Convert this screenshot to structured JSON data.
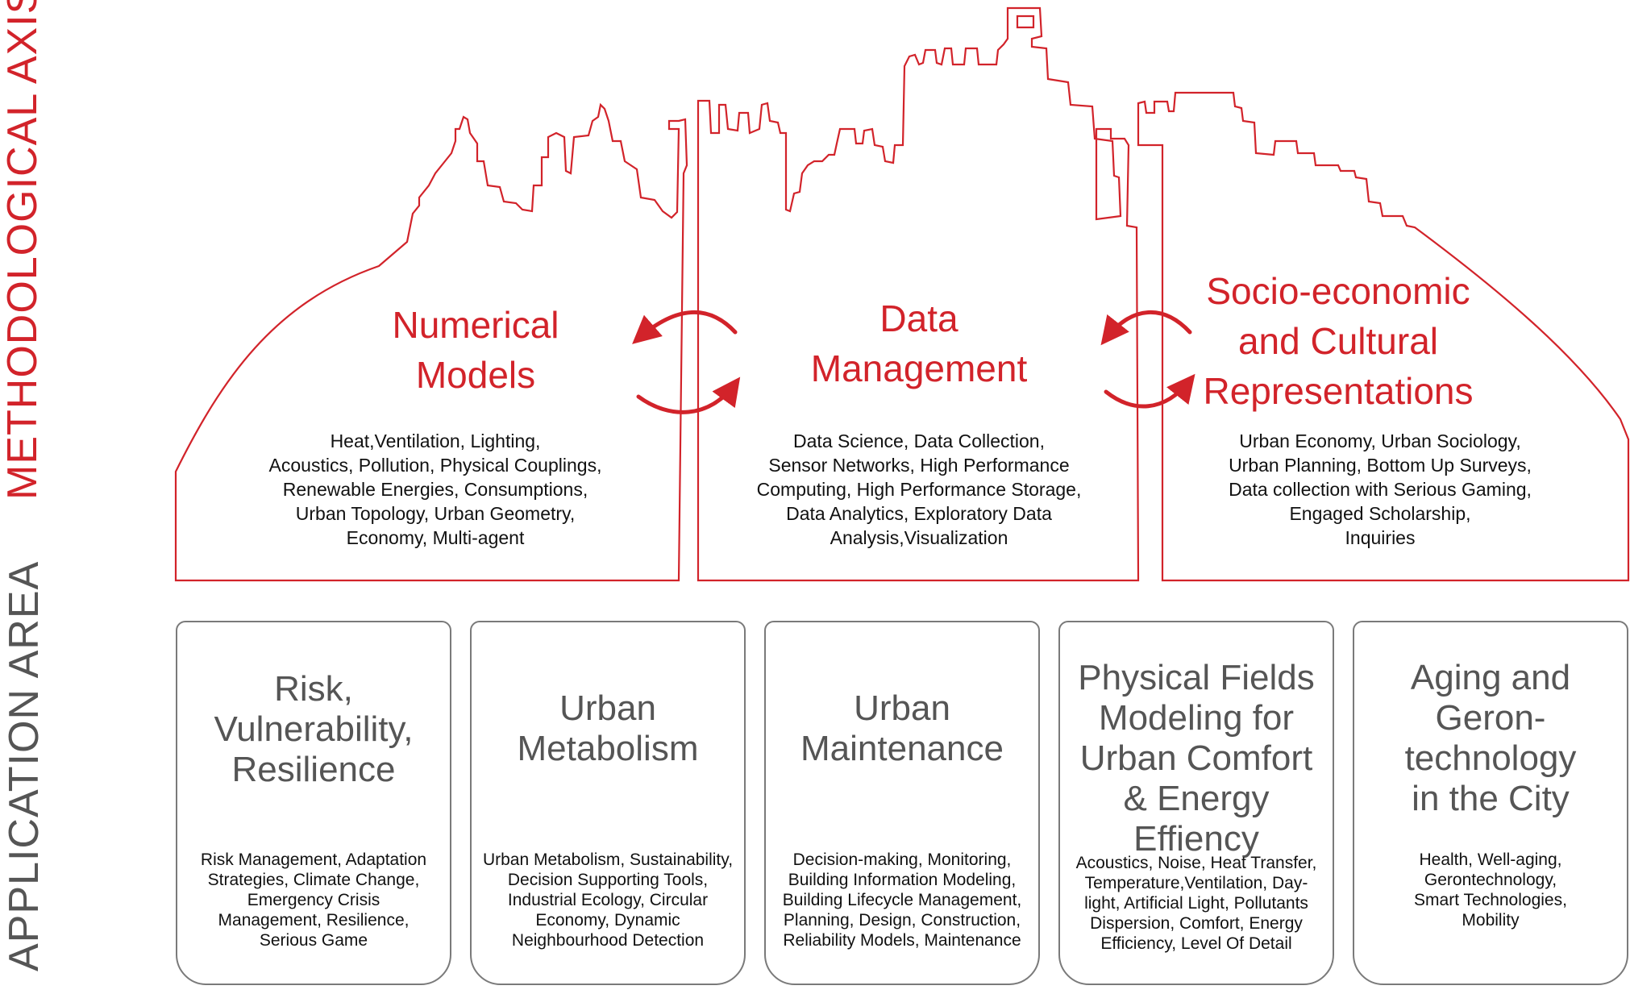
{
  "axis_labels": {
    "methodological": "METHODOLOGICAL AXIS",
    "application": "APPLICATION AREA"
  },
  "colors": {
    "accent": "#d2232a",
    "card_border": "#7a7a7a",
    "card_title": "#555555"
  },
  "pillars": [
    {
      "title_lines": [
        "Numerical",
        "Models"
      ],
      "text_lines": [
        "Heat,Ventilation, Lighting,",
        "Acoustics, Pollution, Physical Couplings,",
        "Renewable Energies, Consumptions,",
        "Urban Topology, Urban Geometry,",
        "Economy, Multi-agent"
      ]
    },
    {
      "title_lines": [
        "Data",
        "Management"
      ],
      "text_lines": [
        "Data Science, Data Collection,",
        "Sensor Networks, High Performance",
        "Computing, High Performance Storage,",
        "Data Analytics, Exploratory Data",
        "Analysis,Visualization"
      ]
    },
    {
      "title_lines": [
        "Socio-economic",
        "and Cultural",
        "Representations"
      ],
      "text_lines": [
        "Urban Economy, Urban Sociology,",
        "Urban Planning, Bottom Up Surveys,",
        "Data collection with Serious Gaming,",
        "Engaged Scholarship,",
        "Inquiries"
      ]
    }
  ],
  "cards": [
    {
      "title_lines": [
        "Risk,",
        "Vulnerability,",
        "Resilience"
      ],
      "text_lines": [
        "Risk Management,  Adaptation",
        "Strategies, Climate Change,",
        "Emergency Crisis",
        "Management, Resilience,",
        "Serious Game"
      ]
    },
    {
      "title_lines": [
        "Urban",
        "Metabolism"
      ],
      "text_lines": [
        "Urban Metabolism, Sustainability,",
        "Decision Supporting Tools,",
        "Industrial Ecology, Circular",
        "Economy, Dynamic",
        "Neighbourhood Detection"
      ]
    },
    {
      "title_lines": [
        "Urban",
        "Maintenance"
      ],
      "text_lines": [
        "Decision-making, Monitoring,",
        "Building Information Modeling,",
        "Building Lifecycle Management,",
        "Planning, Design, Construction,",
        "Reliability Models, Maintenance"
      ]
    },
    {
      "title_lines": [
        "Physical Fields",
        "Modeling for",
        "Urban Comfort",
        "& Energy Effiency"
      ],
      "text_lines": [
        "Acoustics, Noise, Heat Transfer,",
        "Temperature,Ventilation, Day-",
        "light, Artificial Light, Pollutants",
        "Dispersion, Comfort, Energy",
        "Efficiency, Level Of Detail"
      ]
    },
    {
      "title_lines": [
        "Aging and",
        "Geron-",
        "technology",
        "in the City"
      ],
      "text_lines": [
        "Health, Well-aging,",
        "Gerontechnology,",
        "Smart Technologies,",
        "Mobility"
      ]
    }
  ]
}
